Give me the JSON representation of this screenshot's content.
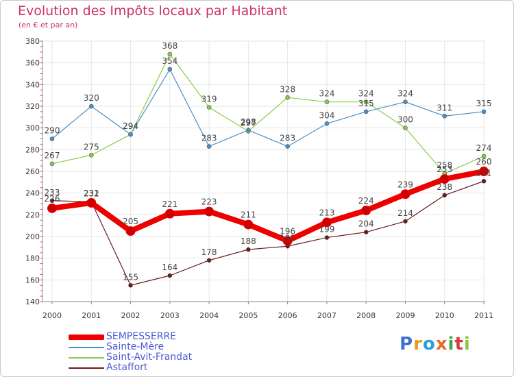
{
  "title": "Evolution des Impôts locaux par Habitant",
  "subtitle": "(en € et par an)",
  "logo": {
    "letters": [
      "P",
      "r",
      "o",
      "x",
      "i",
      "t",
      "i"
    ],
    "colors": [
      "#3f6fd0",
      "#e89a1c",
      "#2b9fd8",
      "#e86a2a",
      "#39a849",
      "#d63b3b",
      "#8ac63f"
    ]
  },
  "chart_data": {
    "type": "line",
    "x": [
      "2000",
      "2001",
      "2002",
      "2003",
      "2004",
      "2005",
      "2006",
      "2007",
      "2008",
      "2009",
      "2010",
      "2011"
    ],
    "ylim": [
      140,
      380
    ],
    "yticks": [
      140,
      160,
      180,
      200,
      220,
      240,
      260,
      280,
      300,
      320,
      340,
      360,
      380
    ],
    "grid": true,
    "legend": "bottom-left",
    "series": [
      {
        "name": "SEMPESSERRE",
        "color": "#ee0000",
        "values": [
          226,
          231,
          205,
          221,
          223,
          211,
          196,
          213,
          224,
          239,
          253,
          260
        ]
      },
      {
        "name": "Sainte-Mère",
        "color": "#4a90c8",
        "values": [
          290,
          320,
          294,
          354,
          283,
          298,
          283,
          304,
          315,
          324,
          311,
          315
        ]
      },
      {
        "name": "Saint-Avit-Frandat",
        "color": "#88cc44",
        "values": [
          267,
          275,
          294,
          368,
          319,
          297,
          328,
          324,
          324,
          300,
          258,
          274
        ]
      },
      {
        "name": "Astaffort",
        "color": "#6b1a1a",
        "values": [
          233,
          232,
          155,
          164,
          178,
          188,
          191,
          199,
          204,
          214,
          238,
          251
        ]
      }
    ]
  }
}
